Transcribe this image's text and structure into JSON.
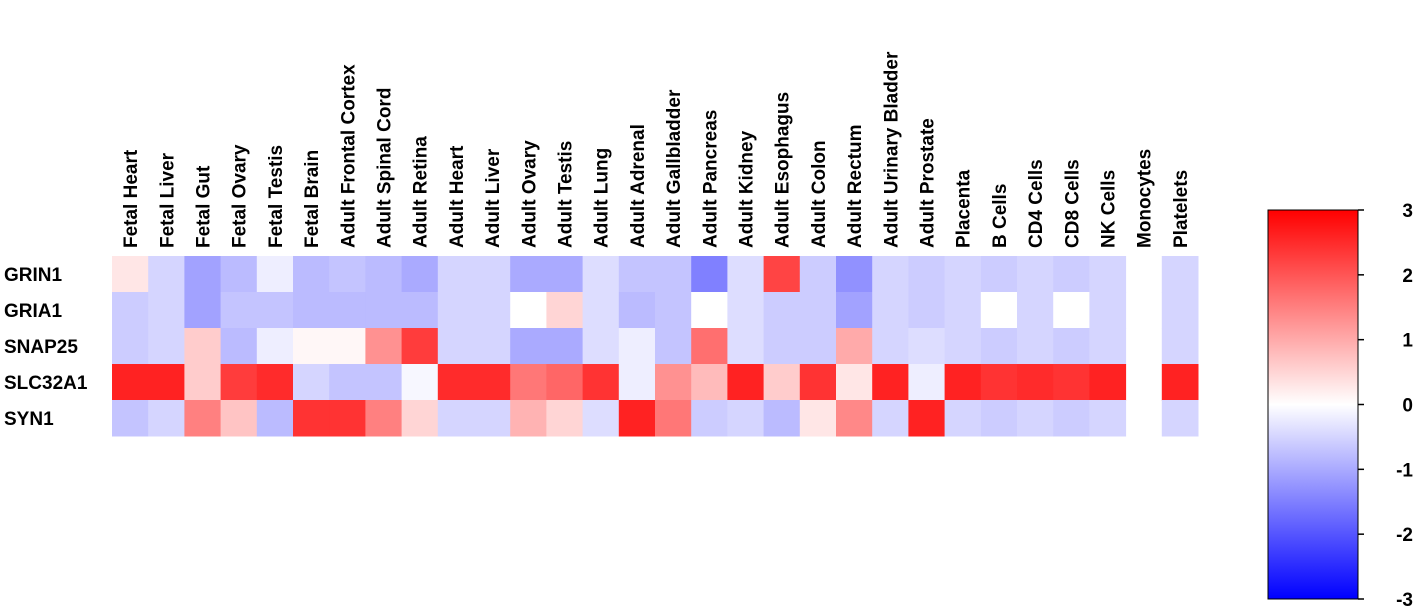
{
  "chart_data": {
    "type": "heatmap",
    "title": "",
    "xlabel": "",
    "ylabel": "",
    "columns": [
      "Fetal Heart",
      "Fetal Liver",
      "Fetal Gut",
      "Fetal Ovary",
      "Fetal Testis",
      "Fetal Brain",
      "Adult Frontal Cortex",
      "Adult Spinal Cord",
      "Adult Retina",
      "Adult Heart",
      "Adult Liver",
      "Adult Ovary",
      "Adult Testis",
      "Adult Lung",
      "Adult Adrenal",
      "Adult Gallbladder",
      "Adult Pancreas",
      "Adult Kidney",
      "Adult Esophagus",
      "Adult Colon",
      "Adult Rectum",
      "Adult Urinary Bladder",
      "Adult Prostate",
      "Placenta",
      "B Cells",
      "CD4 Cells",
      "CD8 Cells",
      "NK Cells",
      "Monocytes",
      "Platelets"
    ],
    "rows": [
      "GRIN1",
      "GRIA1",
      "SNAP25",
      "SLC32A1",
      "SYN1"
    ],
    "values": [
      [
        0.3,
        -0.5,
        -1.1,
        -0.8,
        -0.2,
        -0.8,
        -0.7,
        -0.8,
        -1.0,
        -0.5,
        -0.5,
        -1.0,
        -1.0,
        -0.4,
        -0.7,
        -0.7,
        -1.5,
        -0.4,
        2.2,
        -0.6,
        -1.3,
        -0.5,
        -0.6,
        -0.5,
        -0.6,
        -0.5,
        -0.6,
        -0.5,
        null,
        -0.5
      ],
      [
        -0.6,
        -0.5,
        -1.1,
        -0.7,
        -0.7,
        -0.8,
        -0.8,
        -0.8,
        -0.8,
        -0.5,
        -0.5,
        0.0,
        0.5,
        -0.4,
        -0.8,
        -0.7,
        0.0,
        -0.4,
        -0.6,
        -0.6,
        -1.1,
        -0.5,
        -0.6,
        -0.5,
        0.0,
        -0.5,
        0.0,
        -0.5,
        null,
        -0.5
      ],
      [
        -0.6,
        -0.5,
        0.6,
        -0.8,
        -0.2,
        0.1,
        0.1,
        1.3,
        2.3,
        -0.5,
        -0.5,
        -1.0,
        -1.0,
        -0.4,
        -0.2,
        -0.7,
        1.7,
        -0.4,
        -0.6,
        -0.6,
        1.0,
        -0.5,
        -0.4,
        -0.5,
        -0.6,
        -0.5,
        -0.6,
        -0.5,
        null,
        -0.5
      ],
      [
        2.6,
        2.6,
        0.6,
        2.3,
        2.5,
        -0.5,
        -0.7,
        -0.7,
        -0.1,
        2.5,
        2.5,
        1.6,
        1.8,
        2.4,
        -0.2,
        1.3,
        0.8,
        2.6,
        0.6,
        2.4,
        0.3,
        2.6,
        -0.2,
        2.6,
        2.4,
        2.5,
        2.4,
        2.6,
        null,
        2.6
      ],
      [
        -0.7,
        -0.5,
        1.5,
        0.7,
        -0.8,
        2.4,
        2.4,
        1.5,
        0.5,
        -0.5,
        -0.5,
        0.9,
        0.5,
        -0.4,
        2.6,
        1.6,
        -0.6,
        -0.5,
        -0.8,
        0.3,
        1.4,
        -0.5,
        2.6,
        -0.5,
        -0.6,
        -0.5,
        -0.6,
        -0.5,
        null,
        -0.5
      ]
    ],
    "colorbar": {
      "min": -3,
      "max": 3,
      "ticks": [
        "3",
        "2",
        "1",
        "0",
        "-1",
        "-2",
        "-3"
      ],
      "colors": [
        "#ff0000",
        "#ffffff",
        "#0000ff"
      ]
    }
  }
}
